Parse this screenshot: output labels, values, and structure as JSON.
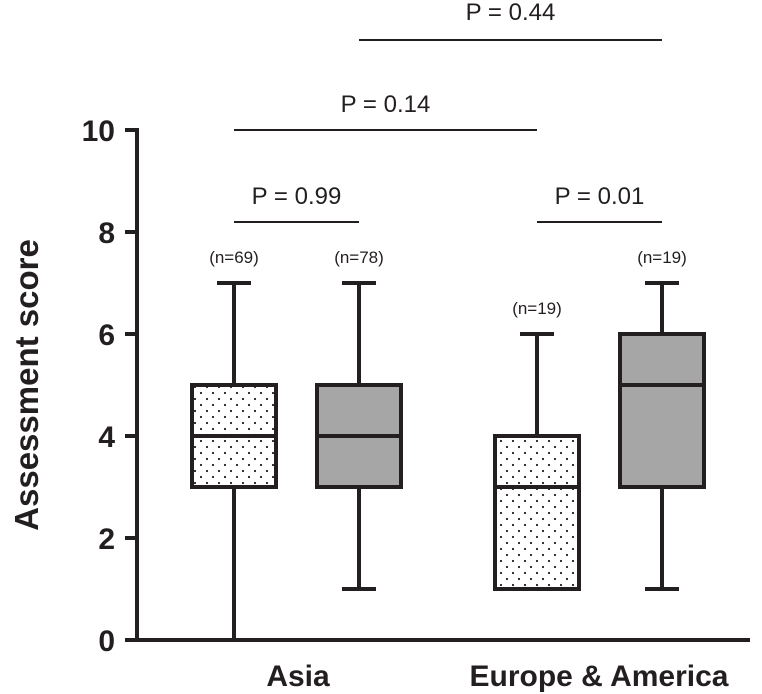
{
  "chart_data": {
    "type": "box",
    "ylabel": "Assessment score",
    "ylim": [
      0,
      10
    ],
    "yticks": [
      "0",
      "2",
      "4",
      "6",
      "8",
      "10"
    ],
    "groups": [
      "Asia",
      "Europe & America"
    ],
    "fills": {
      "dotted": "#ffffff",
      "solid": "#a6a6a7"
    },
    "boxes": [
      {
        "group": 0,
        "pattern": "dotted",
        "min": 0,
        "q1": 3,
        "median": 4,
        "q3": 5,
        "max": 7,
        "n_label": "(n=69)"
      },
      {
        "group": 0,
        "pattern": "solid",
        "min": 1,
        "q1": 3,
        "median": 4,
        "q3": 5,
        "max": 7,
        "n_label": "(n=78)"
      },
      {
        "group": 1,
        "pattern": "dotted",
        "min": 1,
        "q1": 1,
        "median": 3,
        "q3": 4,
        "max": 6,
        "n_label": "(n=19)"
      },
      {
        "group": 1,
        "pattern": "solid",
        "min": 1,
        "q1": 3,
        "median": 5,
        "q3": 6,
        "max": 7,
        "n_label": "(n=19)"
      }
    ],
    "comparisons": [
      {
        "from": 0,
        "to": 1,
        "label": "P = 0.99"
      },
      {
        "from": 2,
        "to": 3,
        "label": "P = 0.01"
      },
      {
        "from": 0,
        "to": 2,
        "label": "P = 0.14"
      },
      {
        "from": 1,
        "to": 3,
        "label": "P = 0.44"
      }
    ]
  }
}
